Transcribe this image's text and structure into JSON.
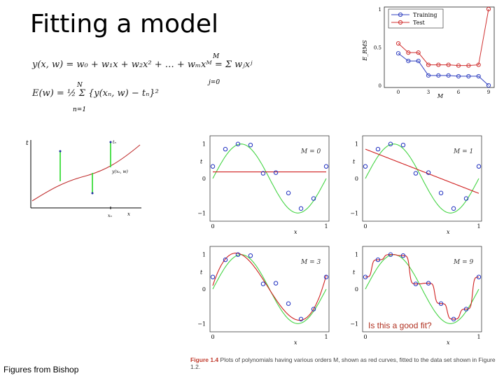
{
  "slide": {
    "title": "Fitting a model",
    "credit": "Figures from Bishop",
    "question": "Is this a good fit?",
    "caption_fig": "Figure 1.4",
    "caption_text": "Plots of polynomials having various orders M, shown as red curves, fitted to the data set shown in Figure 1.2."
  },
  "equations": {
    "eq1": "y(x, w) = w₀ + w₁x + w₂x² + … + wₘxᴹ = Σ wⱼxʲ",
    "eq1_sum_top": "M",
    "eq1_sum_bottom": "j=0",
    "eq2": "E(w) = ½ Σ {y(xₙ, w) − tₙ}²",
    "eq2_sum_top": "N",
    "eq2_sum_bottom": "n=1"
  },
  "error_plot": {
    "labels": {
      "t": "t",
      "tn": "tₙ",
      "y": "y(xₙ, w)",
      "xn": "xₙ",
      "x": "x"
    }
  },
  "panels": [
    {
      "label": "M = 0"
    },
    {
      "label": "M = 1"
    },
    {
      "label": "M = 3"
    },
    {
      "label": "M = 9"
    }
  ],
  "panel_axes": {
    "ylabel": "t",
    "xlabel": "x",
    "yticks": [
      "1",
      "0",
      "−1"
    ],
    "xticks": [
      "0",
      "1"
    ]
  },
  "chart_data": {
    "type": "line",
    "ylabel": "E_RMS",
    "xlabel": "M",
    "x": [
      0,
      1,
      2,
      3,
      4,
      5,
      6,
      7,
      8,
      9
    ],
    "xticks": [
      "0",
      "3",
      "6",
      "9"
    ],
    "yticks": [
      "0",
      "0.5",
      "1"
    ],
    "ylim": [
      0,
      1
    ],
    "xlim": [
      0,
      9
    ],
    "legend_position": "top-left",
    "series": [
      {
        "name": "Training",
        "color": "#3040c0",
        "values": [
          0.42,
          0.32,
          0.32,
          0.13,
          0.13,
          0.13,
          0.12,
          0.12,
          0.12,
          0.0
        ]
      },
      {
        "name": "Test",
        "color": "#d03030",
        "values": [
          0.55,
          0.43,
          0.43,
          0.27,
          0.27,
          0.27,
          0.26,
          0.26,
          0.27,
          1.0
        ]
      }
    ]
  }
}
